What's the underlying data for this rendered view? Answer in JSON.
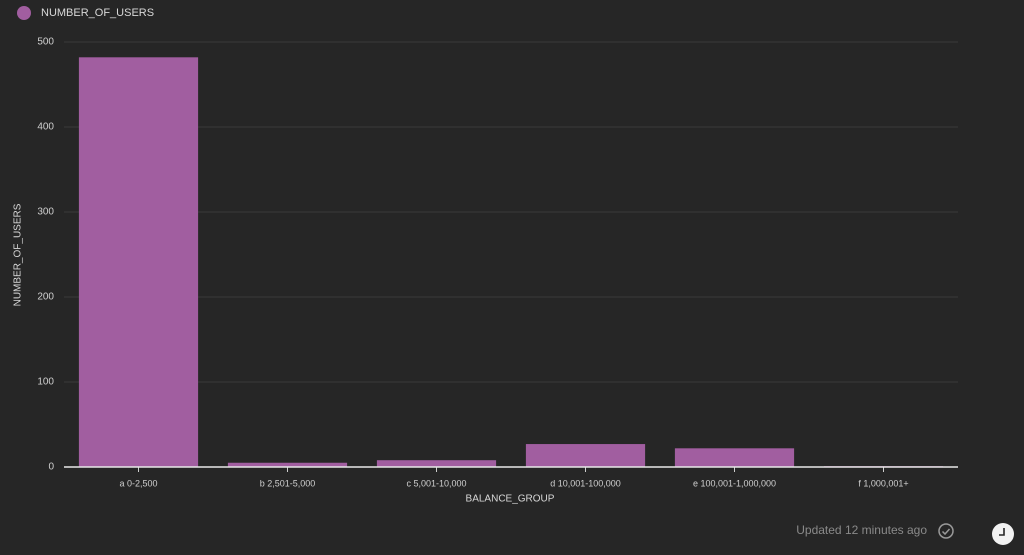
{
  "chart_data": {
    "type": "bar",
    "x_label": "BALANCE_GROUP",
    "y_label": "NUMBER_OF_USERS",
    "categories": [
      "a 0-2,500",
      "b 2,501-5,000",
      "c 5,001-10,000",
      "d 10,001-100,000",
      "e 100,001-1,000,000",
      "f 1,000,001+"
    ],
    "series": [
      {
        "name": "NUMBER_OF_USERS",
        "color": "#a15ea0",
        "values": [
          482,
          5,
          8,
          27,
          22,
          1
        ]
      }
    ],
    "ylim": [
      0,
      500
    ],
    "yticks": [
      0,
      100,
      200,
      300,
      400,
      500
    ],
    "grid": true,
    "legend": "top-left"
  },
  "footer": {
    "status": "Updated 12 minutes ago"
  }
}
